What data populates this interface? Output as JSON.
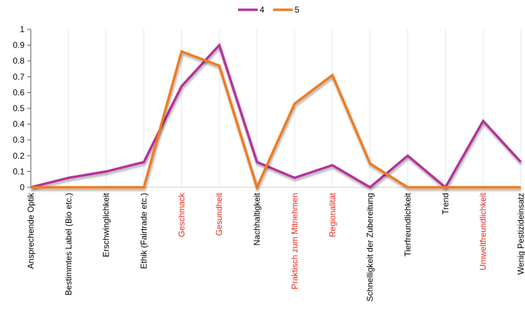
{
  "chart_data": {
    "type": "line",
    "title": "",
    "xlabel": "",
    "ylabel": "",
    "ylim": [
      0,
      1
    ],
    "yticks": [
      "0",
      "0.1",
      "0.2",
      "0.3",
      "0.4",
      "0.5",
      "0.6",
      "0.7",
      "0.8",
      "0.9",
      "1"
    ],
    "grid": "vertical",
    "legend": "top-center",
    "categories": [
      "Ansprechende Optik",
      "Bestimmtes Label (Bio etc.)",
      "Erschwinglichkeit",
      "Ethik (Fairtrade etc.)",
      "Geschmack",
      "Gesundheit",
      "Nachhaltigkeit",
      "Praktisch zum Mitnehmen",
      "Regionalität",
      "Schnelligkeit der Zubereitung",
      "Tierfreundlichkeit",
      "Trend",
      "Umweltfreundlichkeit",
      "Wenig Pestizideinsatz"
    ],
    "highlighted_categories": [
      "Geschmack",
      "Gesundheit",
      "Praktisch zum Mitnehmen",
      "Regionalität",
      "Umweltfreundlichkeit"
    ],
    "highlight_color": "#e8281e",
    "label_color": "#000000",
    "series": [
      {
        "name": "4",
        "color": "#b5339a",
        "values": [
          0,
          0.06,
          0.1,
          0.16,
          0.64,
          0.9,
          0.16,
          0.06,
          0.14,
          0,
          0.2,
          0,
          0.42,
          0.16
        ]
      },
      {
        "name": "5",
        "color": "#f07a1e",
        "values": [
          0,
          0,
          0,
          0,
          0.86,
          0.77,
          0,
          0.53,
          0.71,
          0.15,
          0,
          0,
          0,
          0
        ]
      }
    ]
  }
}
